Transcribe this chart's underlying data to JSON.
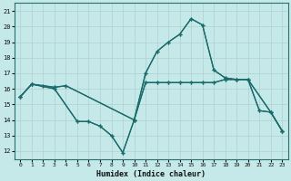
{
  "xlabel": "Humidex (Indice chaleur)",
  "xlim": [
    -0.5,
    23.5
  ],
  "ylim": [
    11.5,
    21.5
  ],
  "xticks": [
    0,
    1,
    2,
    3,
    4,
    5,
    6,
    7,
    8,
    9,
    10,
    11,
    12,
    13,
    14,
    15,
    16,
    17,
    18,
    19,
    20,
    21,
    22,
    23
  ],
  "yticks": [
    12,
    13,
    14,
    15,
    16,
    17,
    18,
    19,
    20,
    21
  ],
  "bg_color": "#c5e8e8",
  "line_color": "#1a6b6b",
  "grid_color": "#afd0d0",
  "line1_x": [
    0,
    1,
    2,
    3,
    4,
    10,
    11,
    12,
    13,
    14,
    15,
    16,
    17,
    18,
    19,
    20,
    21,
    22,
    23
  ],
  "line1_y": [
    15.5,
    16.3,
    16.2,
    16.1,
    16.2,
    14.0,
    16.4,
    16.4,
    16.4,
    16.4,
    16.4,
    16.4,
    16.4,
    16.6,
    16.6,
    16.6,
    14.6,
    14.5,
    13.3
  ],
  "line2_x": [
    0,
    1,
    2,
    3,
    4,
    10,
    11,
    12,
    13,
    14,
    15,
    16,
    17,
    18,
    19,
    20,
    21,
    22,
    23
  ],
  "line2_y": [
    15.5,
    16.3,
    16.2,
    16.1,
    16.2,
    14.0,
    17.0,
    18.4,
    19.0,
    19.5,
    20.5,
    20.1,
    17.2,
    16.7,
    16.6,
    16.6,
    14.6,
    14.5,
    13.3
  ],
  "line3_x": [
    0,
    1,
    3,
    5,
    6,
    7,
    8,
    9,
    10,
    11,
    12,
    13,
    14,
    15,
    16,
    17,
    18,
    19,
    20,
    22,
    23
  ],
  "line3_y": [
    15.5,
    16.3,
    16.0,
    13.9,
    13.9,
    13.6,
    13.0,
    11.9,
    14.0,
    16.4,
    16.4,
    16.4,
    16.4,
    16.4,
    16.4,
    16.4,
    16.6,
    16.6,
    16.6,
    14.5,
    13.3
  ],
  "line4_x": [
    0,
    1,
    3,
    5,
    6,
    7,
    8,
    9,
    10,
    11,
    12,
    13,
    14,
    15,
    16,
    17,
    18,
    19,
    20,
    22,
    23
  ],
  "line4_y": [
    15.5,
    16.3,
    16.0,
    13.9,
    13.9,
    13.6,
    13.0,
    11.9,
    14.0,
    17.0,
    18.4,
    19.0,
    19.5,
    20.5,
    20.1,
    17.2,
    16.7,
    16.6,
    16.6,
    14.5,
    13.3
  ]
}
